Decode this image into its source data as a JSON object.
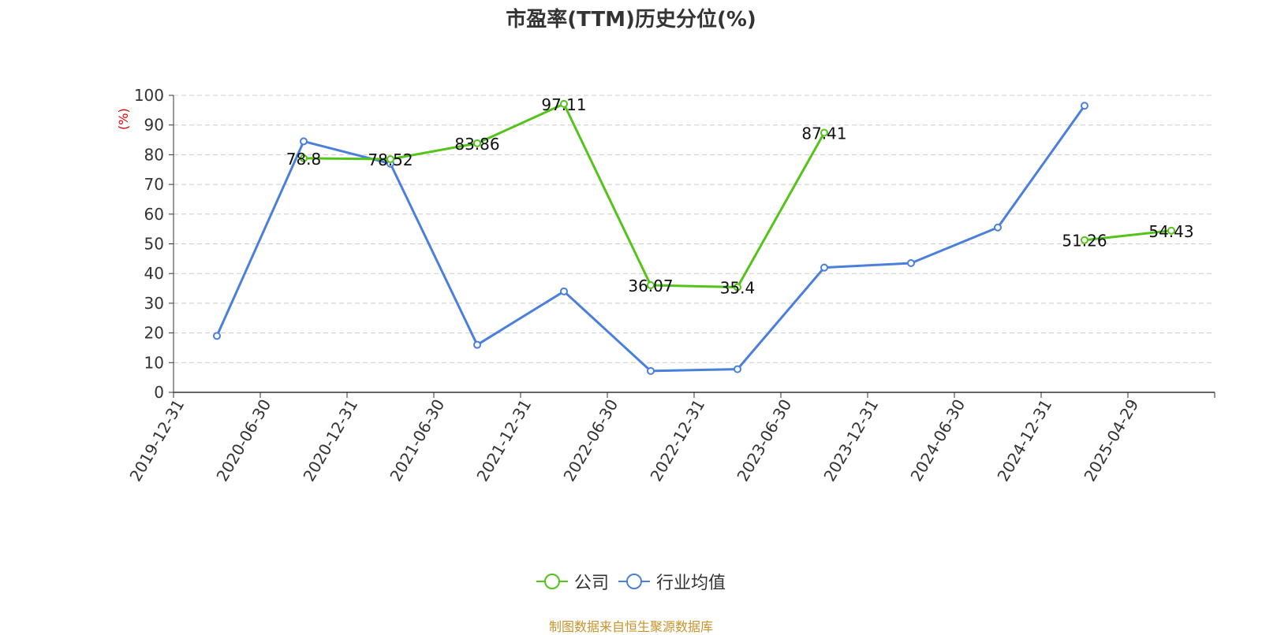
{
  "chart_data": {
    "type": "line",
    "title": "市盈率(TTM)历史分位(%)",
    "ylabel": "(%)",
    "xlabel": "",
    "categories": [
      "2019-12-31",
      "2020-06-30",
      "2020-12-31",
      "2021-06-30",
      "2021-12-31",
      "2022-06-30",
      "2022-12-31",
      "2023-06-30",
      "2023-12-31",
      "2024-06-30",
      "2024-12-31",
      "2025-04-29"
    ],
    "ylim": [
      0,
      100
    ],
    "yticks": [
      0,
      10,
      20,
      30,
      40,
      50,
      60,
      70,
      80,
      90,
      100
    ],
    "grid": true,
    "legend_position": "bottom-center",
    "series": [
      {
        "name": "公司",
        "color": "#52c41a",
        "values": [
          null,
          78.8,
          78.52,
          83.86,
          97.11,
          36.07,
          35.4,
          87.41,
          null,
          null,
          51.26,
          54.43
        ],
        "labels_shown": true
      },
      {
        "name": "行业均值",
        "color": "#4a7fdc",
        "values": [
          19,
          84.5,
          77,
          16,
          34,
          7.2,
          7.8,
          42,
          43.5,
          55.5,
          96.5,
          null
        ],
        "labels_shown": false
      }
    ]
  },
  "legend": {
    "company_label": "公司",
    "industry_label": "行业均值"
  },
  "source_note": "制图数据来自恒生聚源数据库",
  "colors": {
    "axis": "#333333",
    "grid": "#cccccc",
    "ylabel": "#e00000",
    "source": "#c8932a"
  }
}
